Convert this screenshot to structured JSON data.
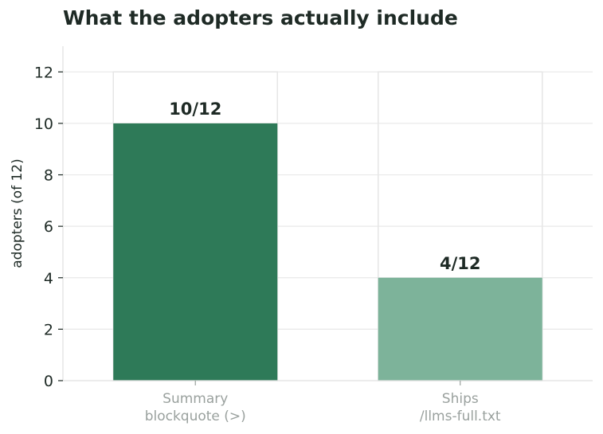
{
  "chart_data": {
    "type": "bar",
    "title": "What the adopters actually include",
    "xlabel": "",
    "ylabel": "adopters (of 12)",
    "categories": [
      [
        "Summary",
        "blockquote (>)"
      ],
      [
        "Ships",
        "/llms-full.txt"
      ]
    ],
    "values": [
      10,
      4
    ],
    "data_labels": [
      "10/12",
      "4/12"
    ],
    "ylim": [
      0,
      13
    ],
    "yticks": [
      0,
      2,
      4,
      6,
      8,
      10,
      12
    ],
    "grid": true,
    "colors": {
      "bars": [
        "#2e7a58",
        "#7db39a"
      ],
      "grid": "#e8e8e8",
      "total_outline": "#e6e6e6",
      "axis": "#e0e0e0"
    }
  }
}
